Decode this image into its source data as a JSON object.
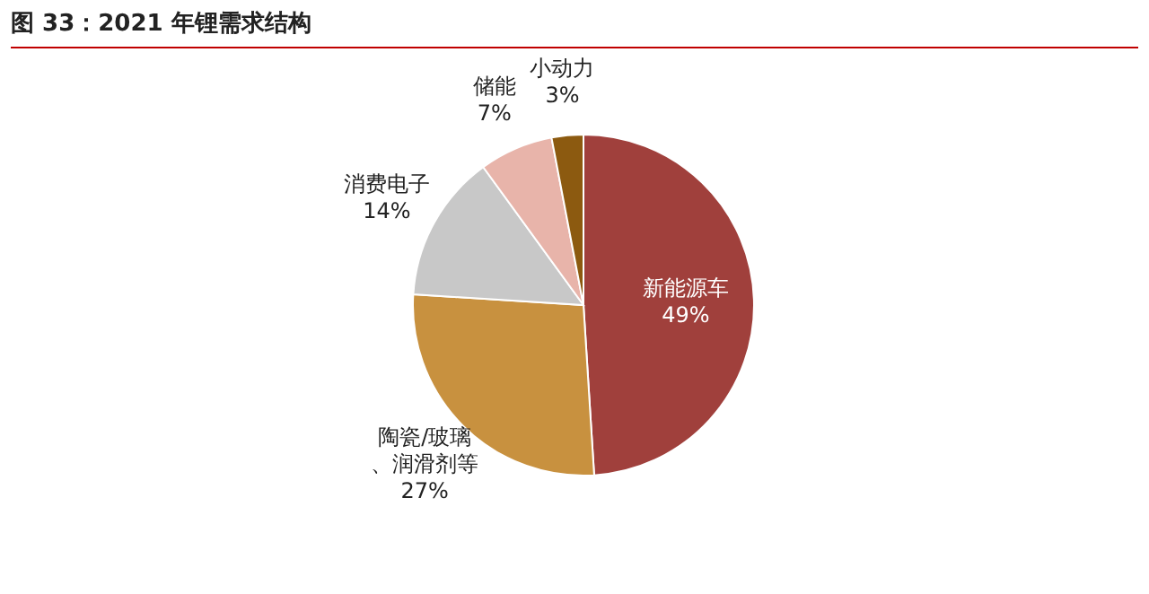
{
  "chart_data": {
    "type": "pie",
    "title": "图 33：2021 年锂需求结构",
    "categories": [
      "新能源车",
      "陶瓷/玻璃、润滑剂等",
      "消费电子",
      "储能",
      "小动力"
    ],
    "values": [
      49,
      27,
      14,
      7,
      3
    ],
    "value_labels": [
      "49%",
      "27%",
      "14%",
      "7%",
      "3%"
    ],
    "colors": [
      "#a0403c",
      "#c8913f",
      "#c8c8c8",
      "#e8b4aa",
      "#8c5a10"
    ],
    "legend": false
  }
}
